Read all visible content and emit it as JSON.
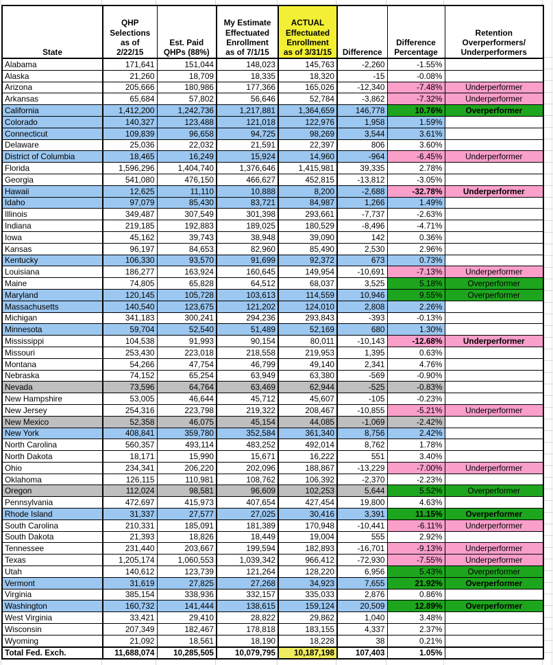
{
  "colors": {
    "state_exchange_blue": "#9CC7F0",
    "shared_exchange_gray": "#BFBFBF",
    "underperformer_pink": "#F99FCA",
    "overperformer_green": "#1EA51E",
    "actual_header_yellow": "#F2EF35",
    "actual_total_yellow": "#EFEC60"
  },
  "table": {
    "columns": {
      "state": "State",
      "qhp": "QHP\nSelections\nas of\n2/22/15",
      "est": "Est. Paid\nQHPs (88%)",
      "mine": "My Estimate\nEffectuated\nEnrollment\nas of 7/1/15",
      "actual": "ACTUAL\nEffectuated\nEnrollment\nas of 3/31/15",
      "diff": "Difference",
      "pct": "Difference\nPercentage",
      "ret": "Retention\nOverperformers/\nUnderperformers"
    },
    "rows": [
      {
        "state": "Alabama",
        "qhp": "171,641",
        "est": "151,044",
        "mine": "148,023",
        "actual": "145,763",
        "diff": "-2,260",
        "pct": "-1.55%",
        "ret": "",
        "bg": "white",
        "status": "",
        "bold": false
      },
      {
        "state": "Alaska",
        "qhp": "21,260",
        "est": "18,709",
        "mine": "18,335",
        "actual": "18,320",
        "diff": "-15",
        "pct": "-0.08%",
        "ret": "",
        "bg": "white",
        "status": "",
        "bold": false
      },
      {
        "state": "Arizona",
        "qhp": "205,666",
        "est": "180,986",
        "mine": "177,366",
        "actual": "165,026",
        "diff": "-12,340",
        "pct": "-7.48%",
        "ret": "Underperformer",
        "bg": "white",
        "status": "under",
        "bold": false
      },
      {
        "state": "Arkansas",
        "qhp": "65,684",
        "est": "57,802",
        "mine": "56,646",
        "actual": "52,784",
        "diff": "-3,862",
        "pct": "-7.32%",
        "ret": "Underperformer",
        "bg": "white",
        "status": "under",
        "bold": false
      },
      {
        "state": "California",
        "qhp": "1,412,200",
        "est": "1,242,736",
        "mine": "1,217,881",
        "actual": "1,364,659",
        "diff": "146,778",
        "pct": "10.76%",
        "ret": "Overperformer",
        "bg": "blue",
        "status": "over",
        "bold": true
      },
      {
        "state": "Colorado",
        "qhp": "140,327",
        "est": "123,488",
        "mine": "121,018",
        "actual": "122,976",
        "diff": "1,958",
        "pct": "1.59%",
        "ret": "",
        "bg": "blue",
        "status": "",
        "bold": false
      },
      {
        "state": "Connecticut",
        "qhp": "109,839",
        "est": "96,658",
        "mine": "94,725",
        "actual": "98,269",
        "diff": "3,544",
        "pct": "3.61%",
        "ret": "",
        "bg": "blue",
        "status": "",
        "bold": false
      },
      {
        "state": "Delaware",
        "qhp": "25,036",
        "est": "22,032",
        "mine": "21,591",
        "actual": "22,397",
        "diff": "806",
        "pct": "3.60%",
        "ret": "",
        "bg": "white",
        "status": "",
        "bold": false
      },
      {
        "state": "District of Columbia",
        "qhp": "18,465",
        "est": "16,249",
        "mine": "15,924",
        "actual": "14,960",
        "diff": "-964",
        "pct": "-6.45%",
        "ret": "Underperformer",
        "bg": "blue",
        "status": "under",
        "bold": false
      },
      {
        "state": "Florida",
        "qhp": "1,596,296",
        "est": "1,404,740",
        "mine": "1,376,646",
        "actual": "1,415,981",
        "diff": "39,335",
        "pct": "2.78%",
        "ret": "",
        "bg": "white",
        "status": "",
        "bold": false
      },
      {
        "state": "Georgia",
        "qhp": "541,080",
        "est": "476,150",
        "mine": "466,627",
        "actual": "452,815",
        "diff": "-13,812",
        "pct": "-3.05%",
        "ret": "",
        "bg": "white",
        "status": "",
        "bold": false
      },
      {
        "state": "Hawaii",
        "qhp": "12,625",
        "est": "11,110",
        "mine": "10,888",
        "actual": "8,200",
        "diff": "-2,688",
        "pct": "-32.78%",
        "ret": "Underperformer",
        "bg": "blue",
        "status": "under",
        "bold": true
      },
      {
        "state": "Idaho",
        "qhp": "97,079",
        "est": "85,430",
        "mine": "83,721",
        "actual": "84,987",
        "diff": "1,266",
        "pct": "1.49%",
        "ret": "",
        "bg": "blue",
        "status": "",
        "bold": false
      },
      {
        "state": "Illinois",
        "qhp": "349,487",
        "est": "307,549",
        "mine": "301,398",
        "actual": "293,661",
        "diff": "-7,737",
        "pct": "-2.63%",
        "ret": "",
        "bg": "white",
        "status": "",
        "bold": false
      },
      {
        "state": "Indiana",
        "qhp": "219,185",
        "est": "192,883",
        "mine": "189,025",
        "actual": "180,529",
        "diff": "-8,496",
        "pct": "-4.71%",
        "ret": "",
        "bg": "white",
        "status": "",
        "bold": false
      },
      {
        "state": "Iowa",
        "qhp": "45,162",
        "est": "39,743",
        "mine": "38,948",
        "actual": "39,090",
        "diff": "142",
        "pct": "0.36%",
        "ret": "",
        "bg": "white",
        "status": "",
        "bold": false
      },
      {
        "state": "Kansas",
        "qhp": "96,197",
        "est": "84,653",
        "mine": "82,960",
        "actual": "85,490",
        "diff": "2,530",
        "pct": "2.96%",
        "ret": "",
        "bg": "white",
        "status": "",
        "bold": false
      },
      {
        "state": "Kentucky",
        "qhp": "106,330",
        "est": "93,570",
        "mine": "91,699",
        "actual": "92,372",
        "diff": "673",
        "pct": "0.73%",
        "ret": "",
        "bg": "blue",
        "status": "",
        "bold": false
      },
      {
        "state": "Louisiana",
        "qhp": "186,277",
        "est": "163,924",
        "mine": "160,645",
        "actual": "149,954",
        "diff": "-10,691",
        "pct": "-7.13%",
        "ret": "Underperformer",
        "bg": "white",
        "status": "under",
        "bold": false
      },
      {
        "state": "Maine",
        "qhp": "74,805",
        "est": "65,828",
        "mine": "64,512",
        "actual": "68,037",
        "diff": "3,525",
        "pct": "5.18%",
        "ret": "Overperformer",
        "bg": "white",
        "status": "over",
        "bold": false
      },
      {
        "state": "Maryland",
        "qhp": "120,145",
        "est": "105,728",
        "mine": "103,613",
        "actual": "114,559",
        "diff": "10,946",
        "pct": "9.55%",
        "ret": "Overperformer",
        "bg": "blue",
        "status": "over",
        "bold": false
      },
      {
        "state": "Massachusetts",
        "qhp": "140,540",
        "est": "123,675",
        "mine": "121,202",
        "actual": "124,010",
        "diff": "2,808",
        "pct": "2.26%",
        "ret": "",
        "bg": "blue",
        "status": "",
        "bold": false
      },
      {
        "state": "Michigan",
        "qhp": "341,183",
        "est": "300,241",
        "mine": "294,236",
        "actual": "293,843",
        "diff": "-393",
        "pct": "-0.13%",
        "ret": "",
        "bg": "white",
        "status": "",
        "bold": false
      },
      {
        "state": "Minnesota",
        "qhp": "59,704",
        "est": "52,540",
        "mine": "51,489",
        "actual": "52,169",
        "diff": "680",
        "pct": "1.30%",
        "ret": "",
        "bg": "blue",
        "status": "",
        "bold": false
      },
      {
        "state": "Mississippi",
        "qhp": "104,538",
        "est": "91,993",
        "mine": "90,154",
        "actual": "80,011",
        "diff": "-10,143",
        "pct": "-12.68%",
        "ret": "Underperformer",
        "bg": "white",
        "status": "under",
        "bold": true
      },
      {
        "state": "Missouri",
        "qhp": "253,430",
        "est": "223,018",
        "mine": "218,558",
        "actual": "219,953",
        "diff": "1,395",
        "pct": "0.63%",
        "ret": "",
        "bg": "white",
        "status": "",
        "bold": false
      },
      {
        "state": "Montana",
        "qhp": "54,266",
        "est": "47,754",
        "mine": "46,799",
        "actual": "49,140",
        "diff": "2,341",
        "pct": "4.76%",
        "ret": "",
        "bg": "white",
        "status": "",
        "bold": false
      },
      {
        "state": "Nebraska",
        "qhp": "74,152",
        "est": "65,254",
        "mine": "63,949",
        "actual": "63,380",
        "diff": "-569",
        "pct": "-0.90%",
        "ret": "",
        "bg": "white",
        "status": "",
        "bold": false
      },
      {
        "state": "Nevada",
        "qhp": "73,596",
        "est": "64,764",
        "mine": "63,469",
        "actual": "62,944",
        "diff": "-525",
        "pct": "-0.83%",
        "ret": "",
        "bg": "gray",
        "status": "",
        "bold": false
      },
      {
        "state": "New Hampshire",
        "qhp": "53,005",
        "est": "46,644",
        "mine": "45,712",
        "actual": "45,607",
        "diff": "-105",
        "pct": "-0.23%",
        "ret": "",
        "bg": "white",
        "status": "",
        "bold": false
      },
      {
        "state": "New Jersey",
        "qhp": "254,316",
        "est": "223,798",
        "mine": "219,322",
        "actual": "208,467",
        "diff": "-10,855",
        "pct": "-5.21%",
        "ret": "Underperformer",
        "bg": "white",
        "status": "under",
        "bold": false
      },
      {
        "state": "New Mexico",
        "qhp": "52,358",
        "est": "46,075",
        "mine": "45,154",
        "actual": "44,085",
        "diff": "-1,069",
        "pct": "-2.42%",
        "ret": "",
        "bg": "gray",
        "status": "",
        "bold": false
      },
      {
        "state": "New York",
        "qhp": "408,841",
        "est": "359,780",
        "mine": "352,584",
        "actual": "361,340",
        "diff": "8,756",
        "pct": "2.42%",
        "ret": "",
        "bg": "blue",
        "status": "",
        "bold": false
      },
      {
        "state": "North Carolina",
        "qhp": "560,357",
        "est": "493,114",
        "mine": "483,252",
        "actual": "492,014",
        "diff": "8,762",
        "pct": "1.78%",
        "ret": "",
        "bg": "white",
        "status": "",
        "bold": false
      },
      {
        "state": "North Dakota",
        "qhp": "18,171",
        "est": "15,990",
        "mine": "15,671",
        "actual": "16,222",
        "diff": "551",
        "pct": "3.40%",
        "ret": "",
        "bg": "white",
        "status": "",
        "bold": false
      },
      {
        "state": "Ohio",
        "qhp": "234,341",
        "est": "206,220",
        "mine": "202,096",
        "actual": "188,867",
        "diff": "-13,229",
        "pct": "-7.00%",
        "ret": "Underperformer",
        "bg": "white",
        "status": "under",
        "bold": false
      },
      {
        "state": "Oklahoma",
        "qhp": "126,115",
        "est": "110,981",
        "mine": "108,762",
        "actual": "106,392",
        "diff": "-2,370",
        "pct": "-2.23%",
        "ret": "",
        "bg": "white",
        "status": "",
        "bold": false
      },
      {
        "state": "Oregon",
        "qhp": "112,024",
        "est": "98,581",
        "mine": "96,609",
        "actual": "102,253",
        "diff": "5,644",
        "pct": "5.52%",
        "ret": "Overperformer",
        "bg": "gray",
        "status": "over",
        "bold": false
      },
      {
        "state": "Pennsylvania",
        "qhp": "472,697",
        "est": "415,973",
        "mine": "407,654",
        "actual": "427,454",
        "diff": "19,800",
        "pct": "4.63%",
        "ret": "",
        "bg": "white",
        "status": "",
        "bold": false
      },
      {
        "state": "Rhode Island",
        "qhp": "31,337",
        "est": "27,577",
        "mine": "27,025",
        "actual": "30,416",
        "diff": "3,391",
        "pct": "11.15%",
        "ret": "Overperformer",
        "bg": "blue",
        "status": "over",
        "bold": true
      },
      {
        "state": "South Carolina",
        "qhp": "210,331",
        "est": "185,091",
        "mine": "181,389",
        "actual": "170,948",
        "diff": "-10,441",
        "pct": "-6.11%",
        "ret": "Underperformer",
        "bg": "white",
        "status": "under",
        "bold": false
      },
      {
        "state": "South Dakota",
        "qhp": "21,393",
        "est": "18,826",
        "mine": "18,449",
        "actual": "19,004",
        "diff": "555",
        "pct": "2.92%",
        "ret": "",
        "bg": "white",
        "status": "",
        "bold": false
      },
      {
        "state": "Tennessee",
        "qhp": "231,440",
        "est": "203,667",
        "mine": "199,594",
        "actual": "182,893",
        "diff": "-16,701",
        "pct": "-9.13%",
        "ret": "Underperformer",
        "bg": "white",
        "status": "under",
        "bold": false
      },
      {
        "state": "Texas",
        "qhp": "1,205,174",
        "est": "1,060,553",
        "mine": "1,039,342",
        "actual": "966,412",
        "diff": "-72,930",
        "pct": "-7.55%",
        "ret": "Underperformer",
        "bg": "white",
        "status": "under",
        "bold": false
      },
      {
        "state": "Utah",
        "qhp": "140,612",
        "est": "123,739",
        "mine": "121,264",
        "actual": "128,220",
        "diff": "6,956",
        "pct": "5.43%",
        "ret": "Overperformer",
        "bg": "white",
        "status": "over",
        "bold": false
      },
      {
        "state": "Vermont",
        "qhp": "31,619",
        "est": "27,825",
        "mine": "27,268",
        "actual": "34,923",
        "diff": "7,655",
        "pct": "21.92%",
        "ret": "Overperformer",
        "bg": "blue",
        "status": "over",
        "bold": true
      },
      {
        "state": "Virginia",
        "qhp": "385,154",
        "est": "338,936",
        "mine": "332,157",
        "actual": "335,033",
        "diff": "2,876",
        "pct": "0.86%",
        "ret": "",
        "bg": "white",
        "status": "",
        "bold": false
      },
      {
        "state": "Washington",
        "qhp": "160,732",
        "est": "141,444",
        "mine": "138,615",
        "actual": "159,124",
        "diff": "20,509",
        "pct": "12.89%",
        "ret": "Overperformer",
        "bg": "blue",
        "status": "over",
        "bold": true
      },
      {
        "state": "West Virginia",
        "qhp": "33,421",
        "est": "29,410",
        "mine": "28,822",
        "actual": "29,862",
        "diff": "1,040",
        "pct": "3.48%",
        "ret": "",
        "bg": "white",
        "status": "",
        "bold": false
      },
      {
        "state": "Wisconsin",
        "qhp": "207,349",
        "est": "182,467",
        "mine": "178,818",
        "actual": "183,155",
        "diff": "4,337",
        "pct": "2.37%",
        "ret": "",
        "bg": "white",
        "status": "",
        "bold": false
      },
      {
        "state": "Wyoming",
        "qhp": "21,092",
        "est": "18,561",
        "mine": "18,190",
        "actual": "18,228",
        "diff": "38",
        "pct": "0.21%",
        "ret": "",
        "bg": "white",
        "status": "",
        "bold": false
      }
    ],
    "total": {
      "state": "Total Fed. Exch.",
      "qhp": "11,688,074",
      "est": "10,285,505",
      "mine": "10,079,795",
      "actual": "10,187,198",
      "diff": "107,403",
      "pct": "1.05%",
      "ret": ""
    }
  }
}
